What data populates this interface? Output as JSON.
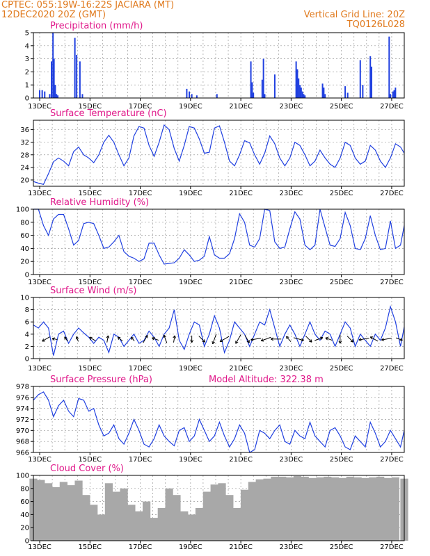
{
  "header": {
    "line1_left": "CPTEC:   055:19W-16:22S   JACIARA (MT)",
    "line2_left": "12DEC2020 20Z (GMT)",
    "line1_right": "Vertical Grid Line: 20Z",
    "line2_right": "TQ0126L028"
  },
  "colors": {
    "header": "#e07a1e",
    "title": "#e0188a",
    "series": "#2040e0",
    "cloud": "#a8a8a8"
  },
  "x_axis": {
    "tick_labels": [
      "13DEC",
      "15DEC",
      "17DEC",
      "19DEC",
      "21DEC",
      "23DEC",
      "25DEC",
      "27DEC"
    ],
    "start_label": "12DEC2020 20Z",
    "span_days": 14.75
  },
  "chart_data": [
    {
      "type": "bar",
      "id": "precip",
      "title": "Precipitation (mm/h)",
      "ylim": [
        0,
        5
      ],
      "yticks": [
        0,
        1,
        2,
        3,
        4,
        5
      ],
      "x_day": [
        0.25,
        0.35,
        0.45,
        0.65,
        0.72,
        0.78,
        0.82,
        0.87,
        0.92,
        0.97,
        1.65,
        1.72,
        1.85,
        1.95,
        6.1,
        6.2,
        6.3,
        6.5,
        7.3,
        8.65,
        8.7,
        8.75,
        9.1,
        9.15,
        9.2,
        9.6,
        10.45,
        10.5,
        10.55,
        10.6,
        10.65,
        10.7,
        10.75,
        10.8,
        11.5,
        11.55,
        11.6,
        12.4,
        12.5,
        13.0,
        13.1,
        13.4,
        13.45,
        14.15,
        14.2,
        14.3,
        14.35,
        14.4
      ],
      "values": [
        0.6,
        0.6,
        0.5,
        0.3,
        2.8,
        5.0,
        3.0,
        1.0,
        0.3,
        0.2,
        4.6,
        3.3,
        2.8,
        0.3,
        0.7,
        0.5,
        0.3,
        0.2,
        0.3,
        2.8,
        1.2,
        0.4,
        1.4,
        3.0,
        0.3,
        1.8,
        2.8,
        2.2,
        1.5,
        1.0,
        0.8,
        0.5,
        0.3,
        0.2,
        1.1,
        0.8,
        0.3,
        0.9,
        0.4,
        2.9,
        1.0,
        3.2,
        2.4,
        4.7,
        0.3,
        0.5,
        0.6,
        0.8
      ]
    },
    {
      "type": "line",
      "id": "temp",
      "title": "Surface Temperature (nC)",
      "ylim": [
        18,
        39
      ],
      "yticks": [
        20,
        24,
        28,
        32,
        36
      ],
      "x_day": [
        0,
        0.2,
        0.4,
        0.6,
        0.8,
        1.0,
        1.2,
        1.4,
        1.6,
        1.8,
        2.0,
        2.2,
        2.4,
        2.6,
        2.8,
        3.0,
        3.2,
        3.4,
        3.6,
        3.8,
        4.0,
        4.2,
        4.4,
        4.6,
        4.8,
        5.0,
        5.2,
        5.4,
        5.6,
        5.8,
        6.0,
        6.2,
        6.4,
        6.6,
        6.8,
        7.0,
        7.2,
        7.4,
        7.6,
        7.8,
        8.0,
        8.2,
        8.4,
        8.6,
        8.8,
        9.0,
        9.2,
        9.4,
        9.6,
        9.8,
        10.0,
        10.2,
        10.4,
        10.6,
        10.8,
        11.0,
        11.2,
        11.4,
        11.6,
        11.8,
        12.0,
        12.2,
        12.4,
        12.6,
        12.8,
        13.0,
        13.2,
        13.4,
        13.6,
        13.8,
        14.0,
        14.2,
        14.4,
        14.6,
        14.75
      ],
      "values": [
        19.5,
        19,
        18.6,
        22,
        25.8,
        27,
        26,
        24.5,
        29,
        30.5,
        28,
        27,
        25.5,
        28,
        32,
        34.2,
        32,
        28,
        24.5,
        27,
        34,
        37,
        36.5,
        31,
        27.5,
        32,
        37.5,
        36,
        30,
        26,
        31,
        37,
        36.5,
        33,
        28.5,
        28.8,
        36.5,
        37.2,
        32,
        26,
        24.5,
        28,
        32.5,
        31.8,
        28,
        25,
        28.5,
        34,
        31.5,
        27,
        24.5,
        27,
        32,
        31,
        28,
        24.5,
        26,
        29.5,
        27,
        25,
        24,
        27,
        32,
        31,
        27,
        25,
        26,
        31,
        29.5,
        26,
        24,
        27,
        31.5,
        30.5,
        28.5
      ]
    },
    {
      "type": "line",
      "id": "humidity",
      "title": "Relative Humidity (%)",
      "ylim": [
        0,
        100
      ],
      "yticks": [
        0,
        20,
        40,
        60,
        80,
        100
      ],
      "x_day": [
        0,
        0.2,
        0.4,
        0.6,
        0.8,
        1.0,
        1.2,
        1.4,
        1.6,
        1.8,
        2.0,
        2.2,
        2.4,
        2.6,
        2.8,
        3.0,
        3.2,
        3.4,
        3.6,
        3.8,
        4.0,
        4.2,
        4.4,
        4.6,
        4.8,
        5.0,
        5.2,
        5.4,
        5.6,
        5.8,
        6.0,
        6.2,
        6.4,
        6.6,
        6.8,
        7.0,
        7.2,
        7.4,
        7.6,
        7.8,
        8.0,
        8.2,
        8.4,
        8.6,
        8.8,
        9.0,
        9.2,
        9.4,
        9.6,
        9.8,
        10.0,
        10.2,
        10.4,
        10.6,
        10.8,
        11.0,
        11.2,
        11.4,
        11.6,
        11.8,
        12.0,
        12.2,
        12.4,
        12.6,
        12.8,
        13.0,
        13.2,
        13.4,
        13.6,
        13.8,
        14.0,
        14.2,
        14.4,
        14.6,
        14.75
      ],
      "values": [
        100,
        100,
        75,
        60,
        85,
        92,
        92,
        70,
        45,
        52,
        78,
        80,
        78,
        60,
        40,
        42,
        50,
        60,
        35,
        28,
        25,
        20,
        24,
        48,
        48,
        30,
        16,
        17,
        18,
        25,
        38,
        30,
        20,
        22,
        28,
        58,
        30,
        25,
        25,
        32,
        55,
        93,
        80,
        45,
        42,
        55,
        100,
        98,
        50,
        40,
        42,
        70,
        96,
        85,
        45,
        38,
        45,
        100,
        72,
        45,
        43,
        55,
        95,
        75,
        40,
        38,
        55,
        90,
        60,
        38,
        40,
        82,
        40,
        45,
        75
      ]
    },
    {
      "type": "line",
      "id": "wind",
      "title": "Surface Wind (m/s)",
      "ylim": [
        0,
        10
      ],
      "yticks": [
        0,
        2,
        4,
        6,
        8,
        10
      ],
      "x_day": [
        0,
        0.2,
        0.4,
        0.6,
        0.8,
        1.0,
        1.2,
        1.4,
        1.6,
        1.8,
        2.0,
        2.2,
        2.4,
        2.6,
        2.8,
        3.0,
        3.2,
        3.4,
        3.6,
        3.8,
        4.0,
        4.2,
        4.4,
        4.6,
        4.8,
        5.0,
        5.2,
        5.4,
        5.6,
        5.8,
        6.0,
        6.2,
        6.4,
        6.6,
        6.8,
        7.0,
        7.2,
        7.4,
        7.6,
        7.8,
        8.0,
        8.2,
        8.4,
        8.6,
        8.8,
        9.0,
        9.2,
        9.4,
        9.6,
        9.8,
        10.0,
        10.2,
        10.4,
        10.6,
        10.8,
        11.0,
        11.2,
        11.4,
        11.6,
        11.8,
        12.0,
        12.2,
        12.4,
        12.6,
        12.8,
        13.0,
        13.2,
        13.4,
        13.6,
        13.8,
        14.0,
        14.2,
        14.4,
        14.6,
        14.75
      ],
      "values": [
        5.5,
        5,
        6,
        5,
        0.5,
        4,
        4.5,
        2.5,
        4,
        5,
        4.2,
        3.5,
        2.5,
        3.5,
        3,
        1,
        4,
        3.5,
        2,
        3,
        4,
        2.5,
        3,
        4.5,
        3.5,
        2,
        4,
        5,
        8,
        3,
        1.5,
        4,
        6,
        5.5,
        2,
        4,
        7,
        5,
        1,
        3,
        6,
        5,
        4,
        2,
        4,
        6,
        5.5,
        8,
        5,
        2,
        4,
        5.5,
        4,
        2,
        4,
        6,
        4,
        3,
        4.5,
        4,
        2,
        4,
        6,
        5,
        2,
        4,
        3,
        2,
        4,
        3,
        5,
        8.5,
        6,
        2,
        5.2
      ],
      "arrows_x_day": [
        0.5,
        0.85,
        1.3,
        1.75,
        2.35,
        2.95,
        3.45,
        3.95,
        4.45,
        4.85,
        5.25,
        5.6,
        6.3,
        6.7,
        7.2,
        7.6,
        8.15,
        8.5,
        8.85,
        9.25,
        9.65,
        10.15,
        10.55,
        10.95,
        11.35,
        11.75,
        12.2,
        12.6,
        13.15,
        13.55,
        14.05,
        14.55
      ],
      "arrows_dir_deg": [
        -150,
        170,
        125,
        110,
        150,
        80,
        140,
        130,
        60,
        160,
        110,
        80,
        -90,
        -45,
        -110,
        -150,
        -120,
        -60,
        -170,
        -160,
        -180,
        130,
        -15,
        -45,
        20,
        160,
        -90,
        -45,
        -170,
        150,
        -170,
        -20
      ],
      "arrows_speed": [
        2.5,
        1.5,
        1.5,
        1.5,
        2,
        2,
        1.8,
        1.5,
        2.5,
        2,
        2.5,
        2,
        2,
        2.5,
        3,
        3,
        3,
        2.5,
        3,
        3,
        3,
        2,
        3,
        2.5,
        2.5,
        2,
        2.5,
        2.5,
        3,
        2.5,
        3,
        2
      ]
    },
    {
      "type": "line",
      "id": "pressure",
      "title": "Surface Pressure (hPa)",
      "annotation": "Model Altitude: 322.38 m",
      "ylim": [
        966,
        978
      ],
      "yticks": [
        966,
        968,
        970,
        972,
        974,
        976,
        978
      ],
      "x_day": [
        0,
        0.2,
        0.4,
        0.6,
        0.8,
        1.0,
        1.2,
        1.4,
        1.6,
        1.8,
        2.0,
        2.2,
        2.4,
        2.6,
        2.8,
        3.0,
        3.2,
        3.4,
        3.6,
        3.8,
        4.0,
        4.2,
        4.4,
        4.6,
        4.8,
        5.0,
        5.2,
        5.4,
        5.6,
        5.8,
        6.0,
        6.2,
        6.4,
        6.6,
        6.8,
        7.0,
        7.2,
        7.4,
        7.6,
        7.8,
        8.0,
        8.2,
        8.4,
        8.6,
        8.8,
        9.0,
        9.2,
        9.4,
        9.6,
        9.8,
        10.0,
        10.2,
        10.4,
        10.6,
        10.8,
        11.0,
        11.2,
        11.4,
        11.6,
        11.8,
        12.0,
        12.2,
        12.4,
        12.6,
        12.8,
        13.0,
        13.2,
        13.4,
        13.6,
        13.8,
        14.0,
        14.2,
        14.4,
        14.6,
        14.75
      ],
      "values": [
        975.5,
        976.5,
        977,
        975.5,
        972.5,
        974.5,
        975.5,
        973.5,
        972.5,
        975.8,
        975.5,
        973.5,
        974,
        971,
        969,
        969.5,
        971,
        968.5,
        967.5,
        969.5,
        972,
        970,
        967.5,
        967,
        968.5,
        971,
        969,
        968,
        967.2,
        970,
        970.5,
        968,
        969,
        972,
        970,
        968,
        969,
        971.5,
        969,
        967,
        968.5,
        971,
        969.5,
        966,
        966.5,
        970,
        969.5,
        968.5,
        970,
        971,
        968,
        967.5,
        970,
        969,
        968.5,
        971.5,
        969,
        968,
        967,
        970,
        970.5,
        969,
        967,
        966.5,
        969,
        968,
        967,
        971.5,
        969.5,
        967,
        968,
        970,
        968.5,
        967,
        970
      ]
    },
    {
      "type": "area",
      "id": "cloud",
      "title": "Cloud Cover (%)",
      "ylim": [
        0,
        100
      ],
      "yticks": [
        0,
        20,
        40,
        60,
        80,
        100
      ],
      "x_day": [
        0,
        0.3,
        0.6,
        0.9,
        1.2,
        1.5,
        1.8,
        2.1,
        2.4,
        2.7,
        3.0,
        3.3,
        3.6,
        3.9,
        4.2,
        4.5,
        4.8,
        5.1,
        5.4,
        5.7,
        6.0,
        6.3,
        6.6,
        6.9,
        7.2,
        7.5,
        7.8,
        8.1,
        8.4,
        8.7,
        9.0,
        9.3,
        9.6,
        9.9,
        10.2,
        10.5,
        10.8,
        11.1,
        11.4,
        11.7,
        12.0,
        12.3,
        12.6,
        12.9,
        13.2,
        13.5,
        13.8,
        14.1,
        14.4,
        14.75
      ],
      "values": [
        95,
        93,
        88,
        82,
        90,
        85,
        92,
        70,
        55,
        40,
        88,
        75,
        80,
        55,
        45,
        60,
        35,
        50,
        80,
        70,
        45,
        40,
        50,
        75,
        86,
        88,
        70,
        50,
        78,
        90,
        94,
        95,
        98,
        98,
        97,
        99,
        98,
        96,
        97,
        98,
        97,
        96,
        98,
        97,
        96,
        97,
        98,
        96,
        97,
        95
      ]
    }
  ]
}
